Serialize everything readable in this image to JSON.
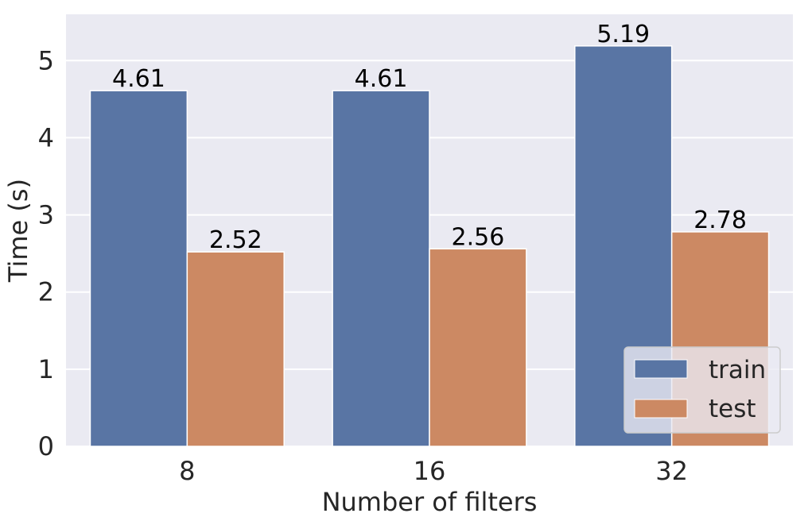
{
  "chart_data": {
    "type": "bar",
    "categories": [
      "8",
      "16",
      "32"
    ],
    "series": [
      {
        "name": "train",
        "values": [
          4.61,
          4.61,
          5.19
        ],
        "color": "#5975a4"
      },
      {
        "name": "test",
        "values": [
          2.52,
          2.56,
          2.78
        ],
        "color": "#cc8963"
      }
    ],
    "data_labels": [
      [
        "4.61",
        "4.61",
        "5.19"
      ],
      [
        "2.52",
        "2.56",
        "2.78"
      ]
    ],
    "xlabel": "Number of filters",
    "ylabel": "Time (s)",
    "ylim": [
      0,
      5.6
    ],
    "yticks": [
      "0",
      "1",
      "2",
      "3",
      "4",
      "5"
    ],
    "grid": true,
    "legend_position": "lower-right",
    "background_color": "#eaeaf2",
    "grid_color": "#ffffff"
  }
}
